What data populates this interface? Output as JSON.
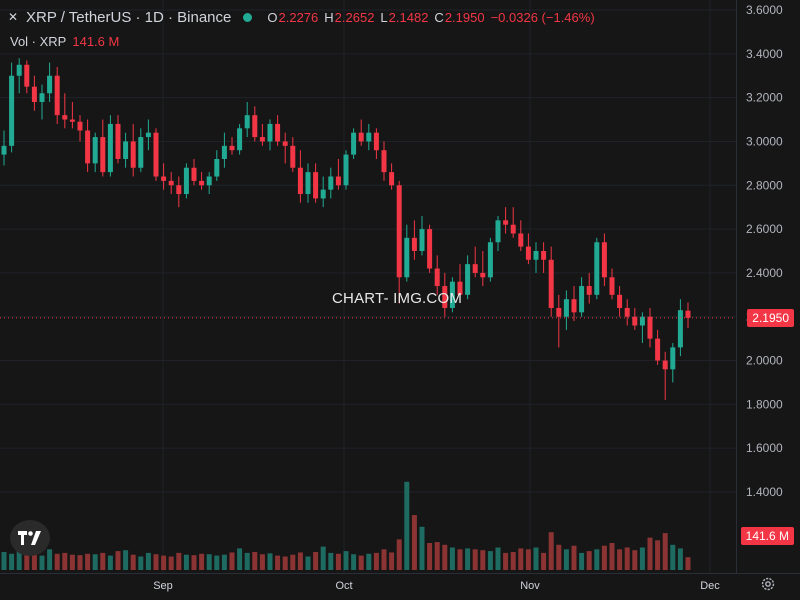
{
  "header": {
    "symbol": "XRP / TetherUS · 1D · Binance",
    "o_label": "O",
    "o_value": "2.2276",
    "h_label": "H",
    "h_value": "2.2652",
    "l_label": "L",
    "l_value": "2.1482",
    "c_label": "C",
    "c_value": "2.1950",
    "change": "−0.0326 (−1.46%)",
    "vol_label": "Vol · XRP",
    "vol_value": "141.6 M"
  },
  "watermark": "CHART- IMG.COM",
  "colors": {
    "up": "#22ab94",
    "down": "#f23645",
    "up_vol": "#1d6b61",
    "down_vol": "#8c3434",
    "background": "#161616"
  },
  "icons": {
    "logo": "tradingview-icon",
    "settings": "gear-icon"
  },
  "chart_data": {
    "type": "candlestick",
    "title": "XRP / TetherUS · 1D · Binance",
    "y_ticks": [
      "3.6000",
      "3.4000",
      "3.2000",
      "3.0000",
      "2.8000",
      "2.6000",
      "2.4000",
      "2.2000",
      "2.0000",
      "1.8000",
      "1.6000",
      "1.4000"
    ],
    "ylim": [
      1.2,
      3.6
    ],
    "x_ticks": [
      "Sep",
      "Oct",
      "Nov",
      "Dec"
    ],
    "last_price": "2.1950",
    "last_volume": "141.6 M",
    "ohlc": [
      [
        2.94,
        3.05,
        2.89,
        2.98
      ],
      [
        2.98,
        3.36,
        2.95,
        3.3
      ],
      [
        3.3,
        3.38,
        3.22,
        3.35
      ],
      [
        3.35,
        3.37,
        3.22,
        3.25
      ],
      [
        3.25,
        3.3,
        3.14,
        3.18
      ],
      [
        3.18,
        3.26,
        3.1,
        3.22
      ],
      [
        3.22,
        3.36,
        3.18,
        3.3
      ],
      [
        3.3,
        3.34,
        3.08,
        3.12
      ],
      [
        3.12,
        3.22,
        3.06,
        3.1
      ],
      [
        3.1,
        3.18,
        3.06,
        3.09
      ],
      [
        3.09,
        3.12,
        3.0,
        3.05
      ],
      [
        3.05,
        3.1,
        2.86,
        2.9
      ],
      [
        2.9,
        3.04,
        2.86,
        3.02
      ],
      [
        3.02,
        3.1,
        2.84,
        2.86
      ],
      [
        2.86,
        3.12,
        2.84,
        3.08
      ],
      [
        3.08,
        3.12,
        2.9,
        2.92
      ],
      [
        2.92,
        3.04,
        2.88,
        3.0
      ],
      [
        3.0,
        3.08,
        2.84,
        2.88
      ],
      [
        2.88,
        3.06,
        2.86,
        3.02
      ],
      [
        3.02,
        3.1,
        2.96,
        3.04
      ],
      [
        3.04,
        3.06,
        2.82,
        2.84
      ],
      [
        2.84,
        2.9,
        2.78,
        2.82
      ],
      [
        2.82,
        2.86,
        2.76,
        2.8
      ],
      [
        2.8,
        2.84,
        2.7,
        2.76
      ],
      [
        2.76,
        2.9,
        2.74,
        2.88
      ],
      [
        2.88,
        2.92,
        2.8,
        2.82
      ],
      [
        2.82,
        2.86,
        2.78,
        2.8
      ],
      [
        2.8,
        2.86,
        2.76,
        2.84
      ],
      [
        2.84,
        2.96,
        2.82,
        2.92
      ],
      [
        2.92,
        3.04,
        2.88,
        2.98
      ],
      [
        2.98,
        3.02,
        2.94,
        2.96
      ],
      [
        2.96,
        3.08,
        2.94,
        3.06
      ],
      [
        3.06,
        3.18,
        3.02,
        3.12
      ],
      [
        3.12,
        3.16,
        3.0,
        3.02
      ],
      [
        3.02,
        3.08,
        2.98,
        3.0
      ],
      [
        3.0,
        3.1,
        2.96,
        3.08
      ],
      [
        3.08,
        3.12,
        2.98,
        3.0
      ],
      [
        3.0,
        3.04,
        2.9,
        2.98
      ],
      [
        2.98,
        3.02,
        2.86,
        2.88
      ],
      [
        2.88,
        2.96,
        2.72,
        2.76
      ],
      [
        2.76,
        2.9,
        2.72,
        2.86
      ],
      [
        2.86,
        2.9,
        2.72,
        2.74
      ],
      [
        2.74,
        2.84,
        2.7,
        2.78
      ],
      [
        2.78,
        2.88,
        2.74,
        2.84
      ],
      [
        2.84,
        2.92,
        2.78,
        2.8
      ],
      [
        2.8,
        2.96,
        2.78,
        2.94
      ],
      [
        2.94,
        3.06,
        2.92,
        3.04
      ],
      [
        3.04,
        3.1,
        2.98,
        3.0
      ],
      [
        3.0,
        3.08,
        2.96,
        3.04
      ],
      [
        3.04,
        3.06,
        2.92,
        2.96
      ],
      [
        2.96,
        3.0,
        2.82,
        2.86
      ],
      [
        2.86,
        2.9,
        2.78,
        2.8
      ],
      [
        2.8,
        2.82,
        2.26,
        2.38
      ],
      [
        2.38,
        2.62,
        2.36,
        2.56
      ],
      [
        2.56,
        2.64,
        2.46,
        2.5
      ],
      [
        2.5,
        2.66,
        2.48,
        2.6
      ],
      [
        2.6,
        2.62,
        2.4,
        2.42
      ],
      [
        2.42,
        2.48,
        2.3,
        2.34
      ],
      [
        2.34,
        2.4,
        2.2,
        2.24
      ],
      [
        2.24,
        2.38,
        2.22,
        2.36
      ],
      [
        2.36,
        2.44,
        2.28,
        2.3
      ],
      [
        2.3,
        2.48,
        2.28,
        2.44
      ],
      [
        2.44,
        2.52,
        2.38,
        2.4
      ],
      [
        2.4,
        2.5,
        2.34,
        2.38
      ],
      [
        2.38,
        2.56,
        2.36,
        2.54
      ],
      [
        2.54,
        2.66,
        2.5,
        2.64
      ],
      [
        2.64,
        2.7,
        2.58,
        2.62
      ],
      [
        2.62,
        2.7,
        2.56,
        2.58
      ],
      [
        2.58,
        2.64,
        2.5,
        2.52
      ],
      [
        2.52,
        2.58,
        2.44,
        2.46
      ],
      [
        2.46,
        2.54,
        2.4,
        2.5
      ],
      [
        2.5,
        2.54,
        2.4,
        2.46
      ],
      [
        2.46,
        2.52,
        2.2,
        2.24
      ],
      [
        2.24,
        2.3,
        2.06,
        2.2
      ],
      [
        2.2,
        2.32,
        2.14,
        2.28
      ],
      [
        2.28,
        2.34,
        2.18,
        2.22
      ],
      [
        2.22,
        2.38,
        2.2,
        2.34
      ],
      [
        2.34,
        2.4,
        2.26,
        2.3
      ],
      [
        2.3,
        2.56,
        2.28,
        2.54
      ],
      [
        2.54,
        2.58,
        2.34,
        2.38
      ],
      [
        2.38,
        2.42,
        2.28,
        2.3
      ],
      [
        2.3,
        2.34,
        2.2,
        2.24
      ],
      [
        2.24,
        2.28,
        2.16,
        2.2
      ],
      [
        2.2,
        2.24,
        2.14,
        2.16
      ],
      [
        2.16,
        2.22,
        2.08,
        2.2
      ],
      [
        2.2,
        2.24,
        2.06,
        2.1
      ],
      [
        2.1,
        2.14,
        1.98,
        2.0
      ],
      [
        2.0,
        2.04,
        1.82,
        1.96
      ],
      [
        1.96,
        2.08,
        1.9,
        2.06
      ],
      [
        2.06,
        2.28,
        2.02,
        2.23
      ],
      [
        2.2276,
        2.2652,
        2.1482,
        2.195
      ]
    ],
    "volume_millions": [
      200,
      180,
      210,
      190,
      170,
      160,
      230,
      180,
      190,
      170,
      165,
      180,
      175,
      190,
      160,
      210,
      220,
      170,
      150,
      190,
      175,
      160,
      150,
      190,
      170,
      165,
      180,
      175,
      160,
      170,
      195,
      240,
      190,
      200,
      175,
      185,
      160,
      150,
      170,
      195,
      150,
      200,
      260,
      190,
      180,
      210,
      175,
      160,
      180,
      190,
      230,
      195,
      340,
      980,
      610,
      480,
      300,
      310,
      280,
      250,
      230,
      240,
      230,
      220,
      210,
      250,
      190,
      200,
      240,
      230,
      250,
      190,
      420,
      280,
      230,
      270,
      190,
      210,
      230,
      270,
      300,
      230,
      250,
      220,
      250,
      360,
      330,
      410,
      280,
      240,
      142
    ]
  }
}
